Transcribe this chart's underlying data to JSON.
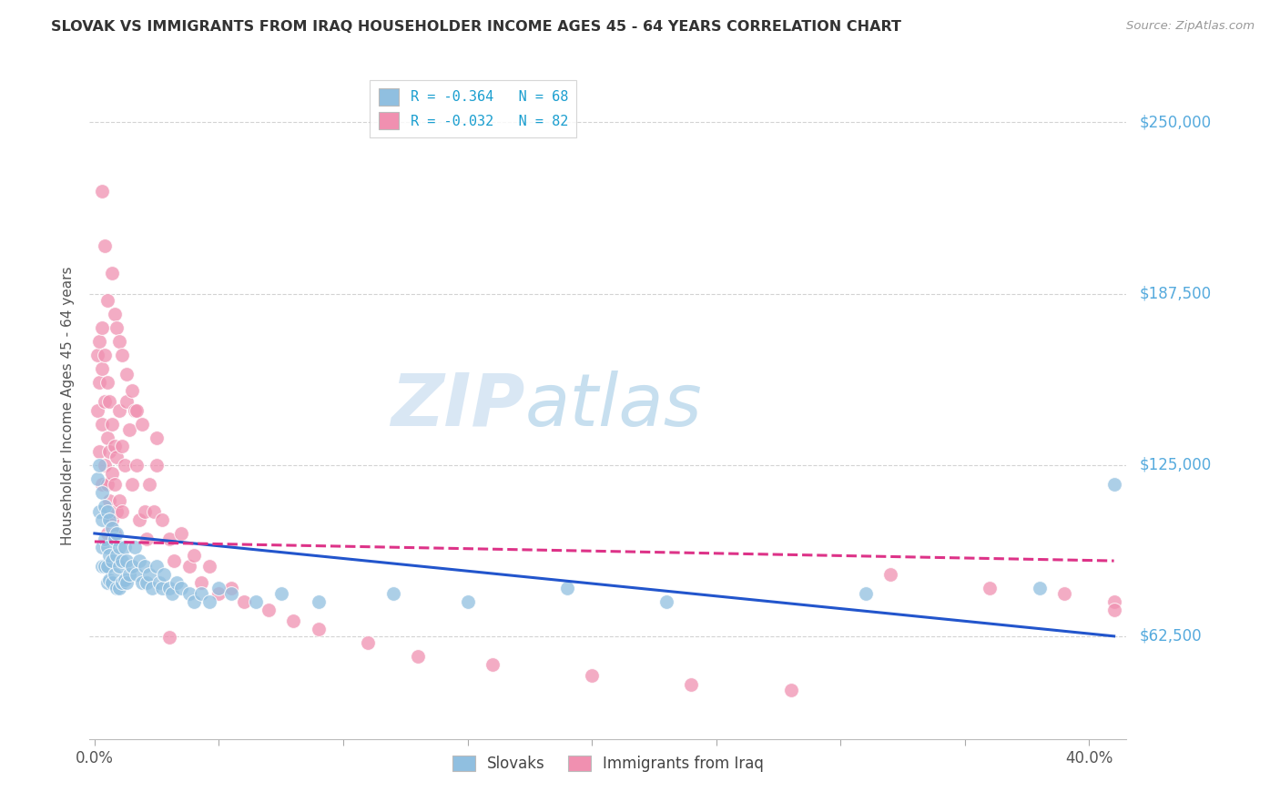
{
  "title": "SLOVAK VS IMMIGRANTS FROM IRAQ HOUSEHOLDER INCOME AGES 45 - 64 YEARS CORRELATION CHART",
  "source": "Source: ZipAtlas.com",
  "ylabel": "Householder Income Ages 45 - 64 years",
  "watermark": "ZIPatlas",
  "legend_entries": [
    {
      "label": "R = -0.364   N = 68",
      "color": "#a8c8e8"
    },
    {
      "label": "R = -0.032   N = 82",
      "color": "#f4a0b8"
    }
  ],
  "bottom_legend": [
    "Slovaks",
    "Immigrants from Iraq"
  ],
  "ytick_labels": [
    "$62,500",
    "$125,000",
    "$187,500",
    "$250,000"
  ],
  "ytick_values": [
    62500,
    125000,
    187500,
    250000
  ],
  "ymin": 25000,
  "ymax": 268000,
  "xmin": -0.002,
  "xmax": 0.415,
  "blue_scatter_x": [
    0.001,
    0.002,
    0.002,
    0.003,
    0.003,
    0.003,
    0.003,
    0.004,
    0.004,
    0.004,
    0.005,
    0.005,
    0.005,
    0.005,
    0.006,
    0.006,
    0.006,
    0.007,
    0.007,
    0.007,
    0.008,
    0.008,
    0.009,
    0.009,
    0.009,
    0.01,
    0.01,
    0.01,
    0.011,
    0.011,
    0.012,
    0.012,
    0.013,
    0.013,
    0.014,
    0.015,
    0.016,
    0.017,
    0.018,
    0.019,
    0.02,
    0.021,
    0.022,
    0.023,
    0.025,
    0.026,
    0.027,
    0.028,
    0.03,
    0.031,
    0.033,
    0.035,
    0.038,
    0.04,
    0.043,
    0.046,
    0.05,
    0.055,
    0.065,
    0.075,
    0.09,
    0.12,
    0.15,
    0.19,
    0.23,
    0.31,
    0.38,
    0.41
  ],
  "blue_scatter_y": [
    120000,
    125000,
    108000,
    115000,
    105000,
    95000,
    88000,
    110000,
    98000,
    88000,
    108000,
    95000,
    88000,
    82000,
    105000,
    92000,
    83000,
    102000,
    90000,
    82000,
    98000,
    85000,
    100000,
    92000,
    80000,
    95000,
    88000,
    80000,
    90000,
    82000,
    95000,
    83000,
    90000,
    82000,
    85000,
    88000,
    95000,
    85000,
    90000,
    82000,
    88000,
    82000,
    85000,
    80000,
    88000,
    82000,
    80000,
    85000,
    80000,
    78000,
    82000,
    80000,
    78000,
    75000,
    78000,
    75000,
    80000,
    78000,
    75000,
    78000,
    75000,
    78000,
    75000,
    80000,
    75000,
    78000,
    80000,
    118000
  ],
  "pink_scatter_x": [
    0.001,
    0.001,
    0.002,
    0.002,
    0.002,
    0.003,
    0.003,
    0.003,
    0.003,
    0.004,
    0.004,
    0.004,
    0.005,
    0.005,
    0.005,
    0.005,
    0.006,
    0.006,
    0.006,
    0.007,
    0.007,
    0.007,
    0.008,
    0.008,
    0.008,
    0.009,
    0.009,
    0.01,
    0.01,
    0.011,
    0.011,
    0.012,
    0.013,
    0.014,
    0.015,
    0.016,
    0.017,
    0.018,
    0.02,
    0.021,
    0.022,
    0.024,
    0.025,
    0.027,
    0.03,
    0.032,
    0.035,
    0.038,
    0.04,
    0.043,
    0.046,
    0.05,
    0.055,
    0.06,
    0.07,
    0.08,
    0.09,
    0.11,
    0.13,
    0.16,
    0.2,
    0.24,
    0.28,
    0.32,
    0.36,
    0.39,
    0.41,
    0.41,
    0.003,
    0.004,
    0.005,
    0.007,
    0.008,
    0.009,
    0.01,
    0.011,
    0.013,
    0.015,
    0.017,
    0.019,
    0.025,
    0.03
  ],
  "pink_scatter_y": [
    165000,
    145000,
    170000,
    155000,
    130000,
    175000,
    160000,
    140000,
    118000,
    165000,
    148000,
    125000,
    155000,
    135000,
    118000,
    100000,
    148000,
    130000,
    112000,
    140000,
    122000,
    105000,
    132000,
    118000,
    100000,
    128000,
    108000,
    145000,
    112000,
    132000,
    108000,
    125000,
    148000,
    138000,
    118000,
    145000,
    125000,
    105000,
    108000,
    98000,
    118000,
    108000,
    125000,
    105000,
    98000,
    90000,
    100000,
    88000,
    92000,
    82000,
    88000,
    78000,
    80000,
    75000,
    72000,
    68000,
    65000,
    60000,
    55000,
    52000,
    48000,
    45000,
    43000,
    85000,
    80000,
    78000,
    75000,
    72000,
    225000,
    205000,
    185000,
    195000,
    180000,
    175000,
    170000,
    165000,
    158000,
    152000,
    145000,
    140000,
    135000,
    62000
  ],
  "blue_line_x": [
    0.0,
    0.41
  ],
  "blue_line_y": [
    100000,
    62500
  ],
  "pink_line_x": [
    0.0,
    0.41
  ],
  "pink_line_y": [
    97000,
    90000
  ],
  "title_color": "#333333",
  "blue_scatter_color": "#90bfe0",
  "pink_scatter_color": "#f090b0",
  "blue_line_color": "#2255cc",
  "pink_line_color": "#dd3388",
  "axis_label_color": "#555555",
  "right_tick_color": "#55aadd",
  "grid_color": "#c8c8c8",
  "watermark_color": "#c8dff0"
}
